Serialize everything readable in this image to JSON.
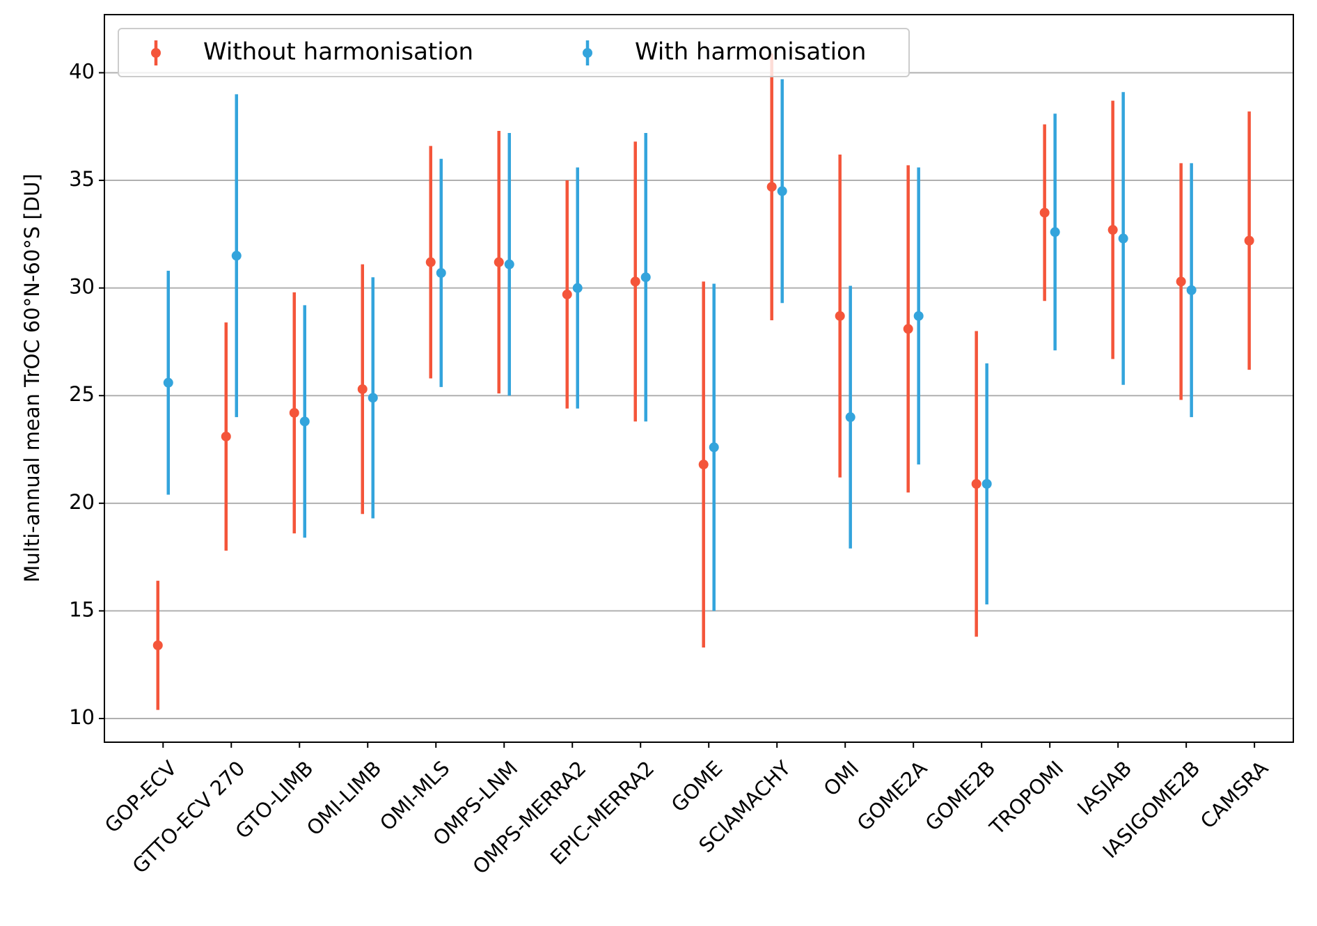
{
  "chart_data": {
    "type": "errorbar",
    "y_label": "Multi-annual mean TrOC 60°N-60°S [DU]",
    "categories": [
      "GOP-ECV",
      "GTTO-ECV 270",
      "GTO-LIMB",
      "OMI-LIMB",
      "OMI-MLS",
      "OMPS-LNM",
      "OMPS-MERRA2",
      "EPIC-MERRA2",
      "GOME",
      "SCIAMACHY",
      "OMI",
      "GOME2A",
      "GOME2B",
      "TROPOMI",
      "IASIAB",
      "IASIGOME2B",
      "CAMSRA"
    ],
    "series": [
      {
        "name": "Without harmonisation",
        "color": "#f4553a",
        "values": [
          13.4,
          23.1,
          24.2,
          25.3,
          31.2,
          31.2,
          29.7,
          30.3,
          21.8,
          34.7,
          28.7,
          28.1,
          20.9,
          33.5,
          32.7,
          30.3,
          32.2
        ],
        "errors": [
          3.0,
          5.3,
          5.6,
          5.8,
          5.4,
          6.1,
          5.3,
          6.5,
          8.5,
          6.2,
          7.5,
          7.6,
          7.1,
          4.1,
          6.0,
          5.5,
          6.0
        ]
      },
      {
        "name": "With harmonisation",
        "color": "#33a4dc",
        "values": [
          25.6,
          31.5,
          23.8,
          24.9,
          30.7,
          31.1,
          30.0,
          30.5,
          22.6,
          34.5,
          24.0,
          28.7,
          20.9,
          32.6,
          32.3,
          29.9,
          null
        ],
        "errors": [
          5.2,
          7.5,
          5.4,
          5.6,
          5.3,
          6.1,
          5.6,
          6.7,
          7.6,
          5.2,
          6.1,
          6.9,
          5.6,
          5.5,
          6.8,
          5.9,
          null
        ]
      }
    ],
    "ylim": [
      8.9,
      42.7
    ],
    "yticks": [
      10,
      15,
      20,
      25,
      30,
      35,
      40
    ],
    "grid": true,
    "legend": "upper left"
  }
}
